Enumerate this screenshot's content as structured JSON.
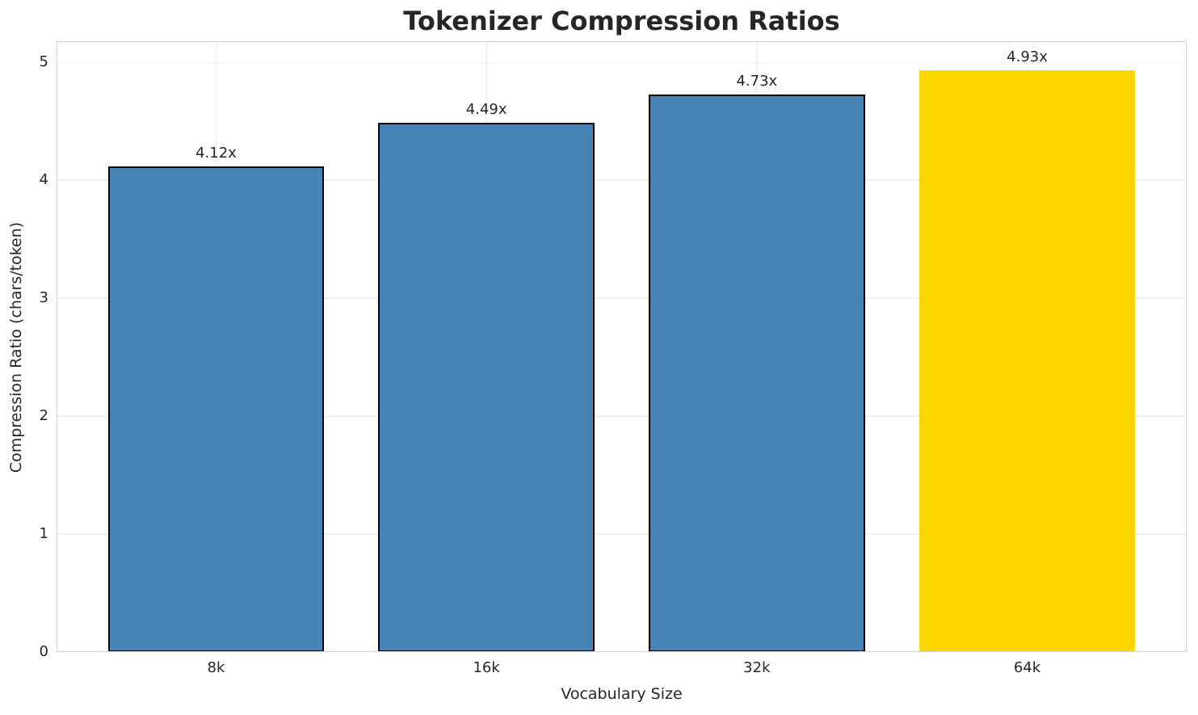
{
  "chart_data": {
    "type": "bar",
    "title": "Tokenizer Compression Ratios",
    "xlabel": "Vocabulary Size",
    "ylabel": "Compression Ratio (chars/token)",
    "categories": [
      "8k",
      "16k",
      "32k",
      "64k"
    ],
    "values": [
      4.12,
      4.49,
      4.73,
      4.93
    ],
    "bar_labels": [
      "4.12x",
      "4.49x",
      "4.73x",
      "4.93x"
    ],
    "ylim": [
      0,
      5.18
    ],
    "yticks": [
      "0",
      "1",
      "2",
      "3",
      "4",
      "5"
    ],
    "grid": "on",
    "legend_position": "none",
    "bar_width_ratio": 0.8,
    "highlight_index": 3,
    "colors": {
      "bars": [
        "#4682B4",
        "#4682B4",
        "#4682B4",
        "#FFD700"
      ],
      "bar_edges": [
        "#000000",
        "#000000",
        "#000000",
        "none"
      ],
      "text": "#262626",
      "grid": "#EFEFEF",
      "spine": "#D0D0D0",
      "background": "#FFFFFF"
    }
  }
}
